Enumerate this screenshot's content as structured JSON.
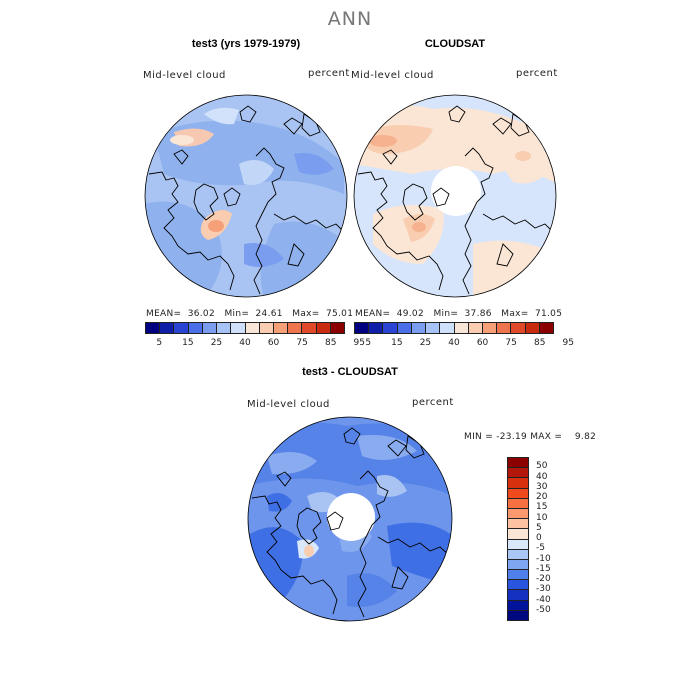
{
  "title": "ANN",
  "panels": [
    {
      "title": "test3 (yrs 1979-1979)",
      "field": "Mid-level cloud",
      "units": "percent",
      "stats": {
        "mean_label": "MEAN=",
        "mean": "36.02",
        "min_label": "Min=",
        "min": "24.61",
        "max_label": "Max=",
        "max": "75.01"
      }
    },
    {
      "title": "CLOUDSAT",
      "field": "Mid-level cloud",
      "units": "percent",
      "stats": {
        "mean_label": "MEAN=",
        "mean": "49.02",
        "min_label": "Min=",
        "min": "37.86",
        "max_label": "Max=",
        "max": "71.05"
      }
    },
    {
      "title": "test3 - CLOUDSAT",
      "field": "Mid-level cloud",
      "units": "percent",
      "minmax": {
        "min_label": "MIN =",
        "min": "-23.19",
        "max_label": "MAX =",
        "max": "9.82"
      }
    }
  ],
  "colorbar_top": {
    "colors": [
      "#000080",
      "#0f1fa8",
      "#2a45d4",
      "#4a6fe8",
      "#7b9df0",
      "#a7c2f5",
      "#cfe0fa",
      "#f8e6d8",
      "#fbcdb0",
      "#f6a07a",
      "#ee7550",
      "#e04a2a",
      "#c92a12",
      "#8b0000"
    ],
    "labels": [
      "5",
      "15",
      "25",
      "40",
      "60",
      "75",
      "85",
      "95"
    ]
  },
  "colorbar_diff": {
    "colors": [
      "#8b0000",
      "#b2170a",
      "#d6300e",
      "#ee4a1e",
      "#f77042",
      "#fa9870",
      "#fcc3a2",
      "#fbe6d6",
      "#d9e8fb",
      "#a9c6f6",
      "#7fa6f0",
      "#5081ea",
      "#2a56df",
      "#1431c0",
      "#00139a",
      "#000880"
    ],
    "labels": [
      "50",
      "40",
      "30",
      "20",
      "15",
      "10",
      "5",
      "0",
      "-5",
      "-10",
      "-15",
      "-20",
      "-30",
      "-40",
      "-50"
    ]
  }
}
